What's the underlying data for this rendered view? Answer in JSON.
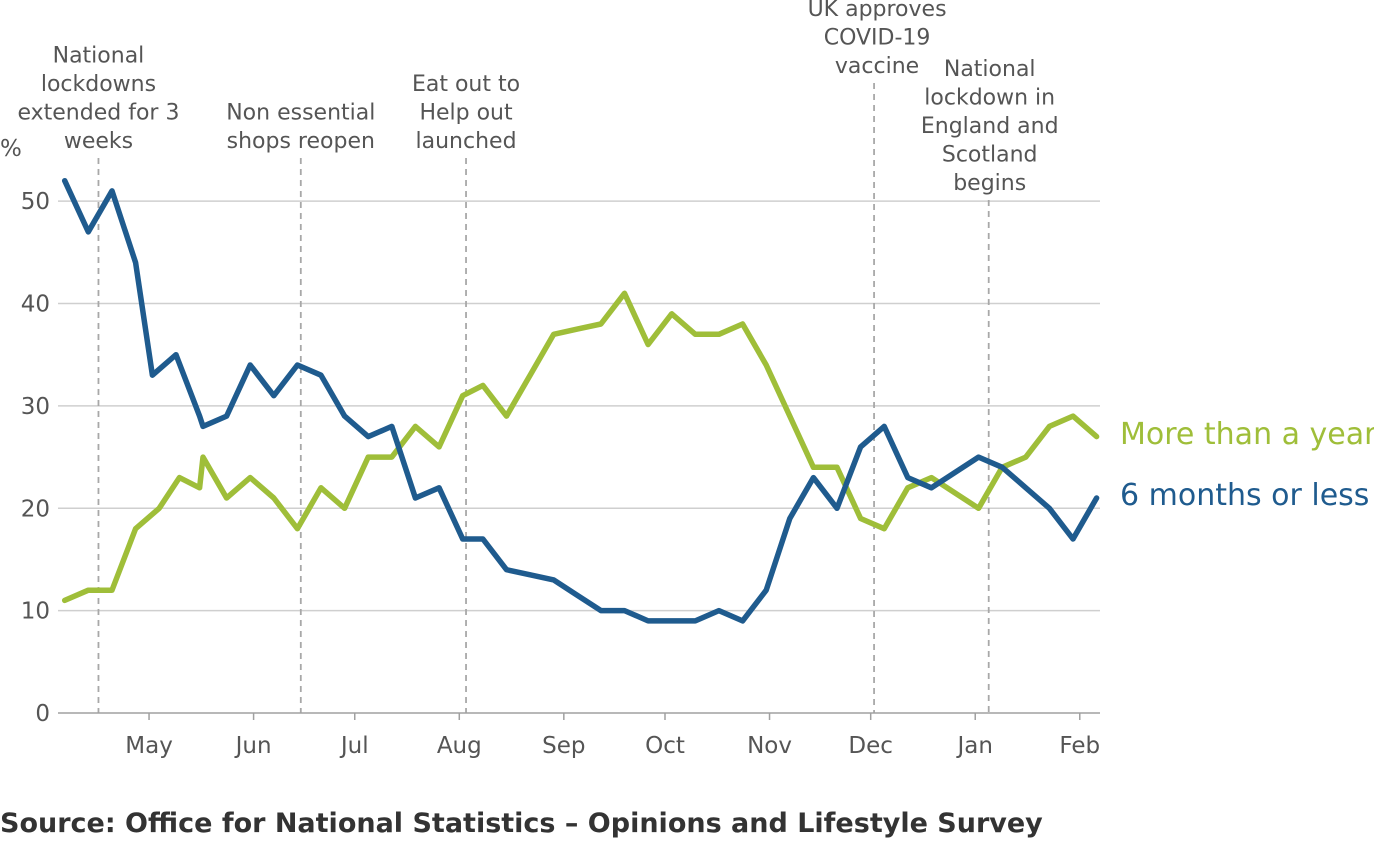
{
  "source": "Source: Office for National Statistics – Opinions and Lifestyle Survey",
  "chart_data": {
    "type": "line",
    "title": "",
    "xlabel": "",
    "ylabel": "%",
    "ylim": [
      0,
      52
    ],
    "y_ticks": [
      0,
      10,
      20,
      30,
      40,
      50
    ],
    "x_range": [
      "2020-04-04",
      "2021-02-07"
    ],
    "x_ticks": [
      {
        "date": "2020-05-01",
        "label": "May"
      },
      {
        "date": "2020-06-01",
        "label": "Jun"
      },
      {
        "date": "2020-07-01",
        "label": "Jul"
      },
      {
        "date": "2020-08-01",
        "label": "Aug"
      },
      {
        "date": "2020-09-01",
        "label": "Sep"
      },
      {
        "date": "2020-10-01",
        "label": "Oct"
      },
      {
        "date": "2020-11-01",
        "label": "Nov"
      },
      {
        "date": "2020-12-01",
        "label": "Dec"
      },
      {
        "date": "2021-01-01",
        "label": "Jan"
      },
      {
        "date": "2021-02-01",
        "label": "Feb"
      }
    ],
    "grid": "horizontal",
    "legend": "right, labels at line ends",
    "events": [
      {
        "date": "2020-04-16",
        "lines": [
          "National",
          "lockdowns",
          "extended for 3",
          "weeks"
        ]
      },
      {
        "date": "2020-06-15",
        "lines": [
          "Non essential",
          "shops reopen"
        ]
      },
      {
        "date": "2020-08-03",
        "lines": [
          "Eat out to",
          "Help out",
          "launched"
        ]
      },
      {
        "date": "2020-12-02",
        "lines": [
          "UK approves",
          "COVID-19",
          "vaccine"
        ]
      },
      {
        "date": "2021-01-05",
        "lines": [
          "National",
          "lockdown in",
          "England and",
          "Scotland",
          "begins"
        ]
      }
    ],
    "series": [
      {
        "name": "More than a year",
        "color": "#9fbe39",
        "points": [
          [
            "2020-04-06",
            11
          ],
          [
            "2020-04-13",
            12
          ],
          [
            "2020-04-20",
            12
          ],
          [
            "2020-04-27",
            18
          ],
          [
            "2020-05-04",
            20
          ],
          [
            "2020-05-10",
            23
          ],
          [
            "2020-05-16",
            22
          ],
          [
            "2020-05-17",
            25
          ],
          [
            "2020-05-24",
            21
          ],
          [
            "2020-05-31",
            23
          ],
          [
            "2020-06-07",
            21
          ],
          [
            "2020-06-14",
            18
          ],
          [
            "2020-06-21",
            22
          ],
          [
            "2020-06-28",
            20
          ],
          [
            "2020-07-05",
            25
          ],
          [
            "2020-07-12",
            25
          ],
          [
            "2020-07-19",
            28
          ],
          [
            "2020-07-26",
            26
          ],
          [
            "2020-08-02",
            31
          ],
          [
            "2020-08-08",
            32
          ],
          [
            "2020-08-15",
            29
          ],
          [
            "2020-08-22",
            33
          ],
          [
            "2020-08-29",
            37
          ],
          [
            "2020-09-05",
            37.5
          ],
          [
            "2020-09-12",
            38
          ],
          [
            "2020-09-19",
            41
          ],
          [
            "2020-09-26",
            36
          ],
          [
            "2020-10-03",
            39
          ],
          [
            "2020-10-10",
            37
          ],
          [
            "2020-10-17",
            37
          ],
          [
            "2020-10-24",
            38
          ],
          [
            "2020-10-31",
            34
          ],
          [
            "2020-11-07",
            29
          ],
          [
            "2020-11-14",
            24
          ],
          [
            "2020-11-21",
            24
          ],
          [
            "2020-11-28",
            19
          ],
          [
            "2020-12-05",
            18
          ],
          [
            "2020-12-12",
            22
          ],
          [
            "2020-12-19",
            23
          ],
          [
            "2020-12-26",
            21.5
          ],
          [
            "2021-01-02",
            20
          ],
          [
            "2021-01-09",
            24
          ],
          [
            "2021-01-16",
            25
          ],
          [
            "2021-01-23",
            28
          ],
          [
            "2021-01-30",
            29
          ],
          [
            "2021-02-06",
            27
          ]
        ]
      },
      {
        "name": "6 months or less",
        "color": "#1f5b8e",
        "points": [
          [
            "2020-04-06",
            52
          ],
          [
            "2020-04-13",
            47
          ],
          [
            "2020-04-20",
            51
          ],
          [
            "2020-04-27",
            44
          ],
          [
            "2020-05-02",
            33
          ],
          [
            "2020-05-09",
            35
          ],
          [
            "2020-05-16",
            29
          ],
          [
            "2020-05-17",
            28
          ],
          [
            "2020-05-24",
            29
          ],
          [
            "2020-05-31",
            34
          ],
          [
            "2020-06-07",
            31
          ],
          [
            "2020-06-14",
            34
          ],
          [
            "2020-06-21",
            33
          ],
          [
            "2020-06-28",
            29
          ],
          [
            "2020-07-05",
            27
          ],
          [
            "2020-07-12",
            28
          ],
          [
            "2020-07-19",
            21
          ],
          [
            "2020-07-26",
            22
          ],
          [
            "2020-08-02",
            17
          ],
          [
            "2020-08-08",
            17
          ],
          [
            "2020-08-15",
            14
          ],
          [
            "2020-08-22",
            13.5
          ],
          [
            "2020-08-29",
            13
          ],
          [
            "2020-09-05",
            11.5
          ],
          [
            "2020-09-12",
            10
          ],
          [
            "2020-09-19",
            10
          ],
          [
            "2020-09-26",
            9
          ],
          [
            "2020-10-03",
            9
          ],
          [
            "2020-10-10",
            9
          ],
          [
            "2020-10-17",
            10
          ],
          [
            "2020-10-24",
            9
          ],
          [
            "2020-10-31",
            12
          ],
          [
            "2020-11-07",
            19
          ],
          [
            "2020-11-14",
            23
          ],
          [
            "2020-11-21",
            20
          ],
          [
            "2020-11-28",
            26
          ],
          [
            "2020-12-05",
            28
          ],
          [
            "2020-12-12",
            23
          ],
          [
            "2020-12-19",
            22
          ],
          [
            "2020-12-26",
            23.5
          ],
          [
            "2021-01-02",
            25
          ],
          [
            "2021-01-09",
            24
          ],
          [
            "2021-01-16",
            22
          ],
          [
            "2021-01-23",
            20
          ],
          [
            "2021-01-30",
            17
          ],
          [
            "2021-02-06",
            21
          ]
        ]
      }
    ]
  }
}
